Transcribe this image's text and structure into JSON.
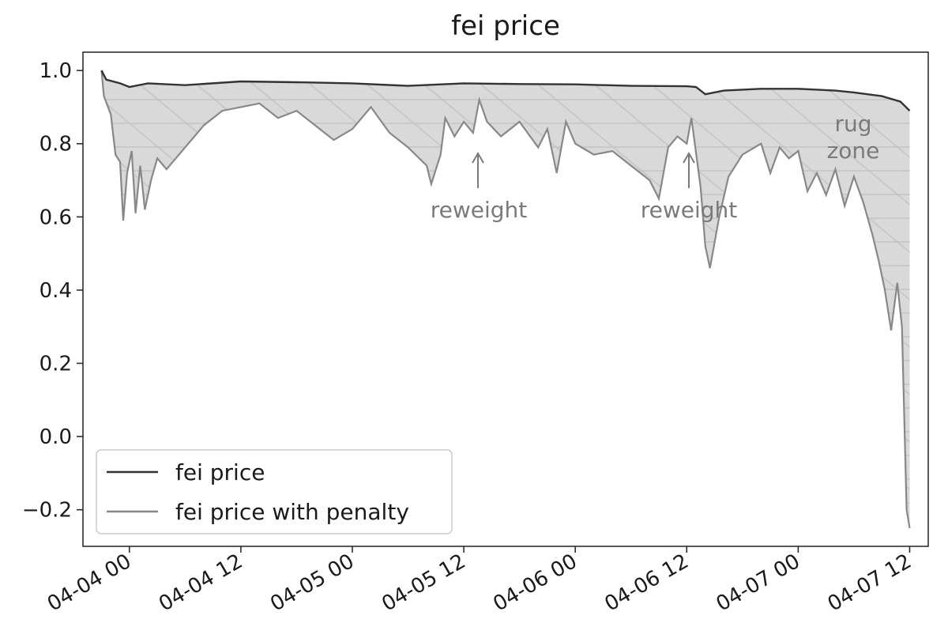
{
  "chart_data": {
    "type": "line",
    "title": "fei price",
    "xlabel": "",
    "ylabel": "",
    "ylim": [
      -0.3,
      1.05
    ],
    "xlim": [
      "2021-04-03 19:00",
      "2021-04-07 14:00"
    ],
    "y_ticks": [
      1.0,
      0.8,
      0.6,
      0.4,
      0.2,
      0.0,
      -0.2
    ],
    "y_tick_labels": [
      "1.0",
      "0.8",
      "0.6",
      "0.4",
      "0.2",
      "0.0",
      "−0.2"
    ],
    "x_ticks": [
      "2021-04-04 00:00",
      "2021-04-04 12:00",
      "2021-04-05 00:00",
      "2021-04-05 12:00",
      "2021-04-06 00:00",
      "2021-04-06 12:00",
      "2021-04-07 00:00",
      "2021-04-07 12:00"
    ],
    "x_tick_labels": [
      "04-04 00",
      "04-04 12",
      "04-05 00",
      "04-05 12",
      "04-06 00",
      "04-06 12",
      "04-07 00",
      "04-07 12"
    ],
    "grid": false,
    "legend": "lower-left",
    "series": [
      {
        "name": "fei price",
        "color": "#333333",
        "points": [
          [
            "2021-04-03 21:00",
            1.0
          ],
          [
            "2021-04-03 21:30",
            0.975
          ],
          [
            "2021-04-03 23:00",
            0.965
          ],
          [
            "2021-04-04 00:00",
            0.955
          ],
          [
            "2021-04-04 02:00",
            0.965
          ],
          [
            "2021-04-04 06:00",
            0.96
          ],
          [
            "2021-04-04 12:00",
            0.97
          ],
          [
            "2021-04-04 18:00",
            0.968
          ],
          [
            "2021-04-05 00:00",
            0.965
          ],
          [
            "2021-04-05 06:00",
            0.958
          ],
          [
            "2021-04-05 12:00",
            0.965
          ],
          [
            "2021-04-05 18:00",
            0.963
          ],
          [
            "2021-04-06 00:00",
            0.962
          ],
          [
            "2021-04-06 06:00",
            0.958
          ],
          [
            "2021-04-06 12:00",
            0.957
          ],
          [
            "2021-04-06 13:00",
            0.955
          ],
          [
            "2021-04-06 14:00",
            0.935
          ],
          [
            "2021-04-06 16:00",
            0.945
          ],
          [
            "2021-04-06 20:00",
            0.95
          ],
          [
            "2021-04-07 00:00",
            0.95
          ],
          [
            "2021-04-07 04:00",
            0.945
          ],
          [
            "2021-04-07 06:00",
            0.94
          ],
          [
            "2021-04-07 09:00",
            0.93
          ],
          [
            "2021-04-07 11:00",
            0.915
          ],
          [
            "2021-04-07 12:00",
            0.89
          ]
        ]
      },
      {
        "name": "fei price with penalty",
        "color": "#888888",
        "points": [
          [
            "2021-04-03 21:00",
            1.0
          ],
          [
            "2021-04-03 21:15",
            0.93
          ],
          [
            "2021-04-03 22:00",
            0.88
          ],
          [
            "2021-04-03 22:30",
            0.77
          ],
          [
            "2021-04-03 23:00",
            0.75
          ],
          [
            "2021-04-03 23:20",
            0.59
          ],
          [
            "2021-04-03 23:45",
            0.72
          ],
          [
            "2021-04-04 00:15",
            0.78
          ],
          [
            "2021-04-04 00:40",
            0.61
          ],
          [
            "2021-04-04 01:10",
            0.74
          ],
          [
            "2021-04-04 01:40",
            0.62
          ],
          [
            "2021-04-04 02:20",
            0.7
          ],
          [
            "2021-04-04 03:00",
            0.76
          ],
          [
            "2021-04-04 04:00",
            0.73
          ],
          [
            "2021-04-04 06:00",
            0.79
          ],
          [
            "2021-04-04 08:00",
            0.85
          ],
          [
            "2021-04-04 10:00",
            0.89
          ],
          [
            "2021-04-04 12:00",
            0.9
          ],
          [
            "2021-04-04 14:00",
            0.91
          ],
          [
            "2021-04-04 16:00",
            0.87
          ],
          [
            "2021-04-04 18:00",
            0.89
          ],
          [
            "2021-04-04 20:00",
            0.85
          ],
          [
            "2021-04-04 22:00",
            0.81
          ],
          [
            "2021-04-05 00:00",
            0.84
          ],
          [
            "2021-04-05 02:00",
            0.9
          ],
          [
            "2021-04-05 04:00",
            0.83
          ],
          [
            "2021-04-05 06:00",
            0.79
          ],
          [
            "2021-04-05 08:00",
            0.74
          ],
          [
            "2021-04-05 08:30",
            0.69
          ],
          [
            "2021-04-05 09:30",
            0.77
          ],
          [
            "2021-04-05 10:00",
            0.87
          ],
          [
            "2021-04-05 11:00",
            0.82
          ],
          [
            "2021-04-05 12:00",
            0.86
          ],
          [
            "2021-04-05 13:00",
            0.83
          ],
          [
            "2021-04-05 13:40",
            0.92
          ],
          [
            "2021-04-05 14:30",
            0.86
          ],
          [
            "2021-04-05 16:00",
            0.82
          ],
          [
            "2021-04-05 18:00",
            0.86
          ],
          [
            "2021-04-05 20:00",
            0.79
          ],
          [
            "2021-04-05 21:00",
            0.84
          ],
          [
            "2021-04-05 22:00",
            0.72
          ],
          [
            "2021-04-05 23:00",
            0.86
          ],
          [
            "2021-04-06 00:00",
            0.8
          ],
          [
            "2021-04-06 02:00",
            0.77
          ],
          [
            "2021-04-06 04:00",
            0.78
          ],
          [
            "2021-04-06 06:00",
            0.74
          ],
          [
            "2021-04-06 08:00",
            0.7
          ],
          [
            "2021-04-06 09:00",
            0.65
          ],
          [
            "2021-04-06 10:00",
            0.79
          ],
          [
            "2021-04-06 11:00",
            0.82
          ],
          [
            "2021-04-06 12:00",
            0.8
          ],
          [
            "2021-04-06 12:30",
            0.87
          ],
          [
            "2021-04-06 13:30",
            0.68
          ],
          [
            "2021-04-06 14:00",
            0.52
          ],
          [
            "2021-04-06 14:30",
            0.46
          ],
          [
            "2021-04-06 15:30",
            0.6
          ],
          [
            "2021-04-06 16:30",
            0.71
          ],
          [
            "2021-04-06 18:00",
            0.77
          ],
          [
            "2021-04-06 20:00",
            0.8
          ],
          [
            "2021-04-06 21:00",
            0.72
          ],
          [
            "2021-04-06 22:00",
            0.79
          ],
          [
            "2021-04-06 23:00",
            0.76
          ],
          [
            "2021-04-07 00:00",
            0.78
          ],
          [
            "2021-04-07 01:00",
            0.67
          ],
          [
            "2021-04-07 02:00",
            0.72
          ],
          [
            "2021-04-07 03:00",
            0.66
          ],
          [
            "2021-04-07 04:00",
            0.73
          ],
          [
            "2021-04-07 05:00",
            0.63
          ],
          [
            "2021-04-07 06:00",
            0.71
          ],
          [
            "2021-04-07 07:00",
            0.64
          ],
          [
            "2021-04-07 08:00",
            0.55
          ],
          [
            "2021-04-07 08:40",
            0.48
          ],
          [
            "2021-04-07 09:20",
            0.4
          ],
          [
            "2021-04-07 10:00",
            0.29
          ],
          [
            "2021-04-07 10:40",
            0.42
          ],
          [
            "2021-04-07 11:10",
            0.3
          ],
          [
            "2021-04-07 11:40",
            -0.2
          ],
          [
            "2021-04-07 12:00",
            -0.25
          ]
        ]
      }
    ],
    "annotations": [
      {
        "text": "reweight",
        "target": [
          "2021-04-05 12:00",
          0.86
        ]
      },
      {
        "text": "reweight",
        "target": [
          "2021-04-06 12:00",
          0.8
        ]
      },
      {
        "text": "rug zone",
        "lines": [
          "rug",
          "zone"
        ]
      }
    ],
    "fill_color": "#d9d9d9",
    "hatch_color": "#c4c4c4"
  }
}
